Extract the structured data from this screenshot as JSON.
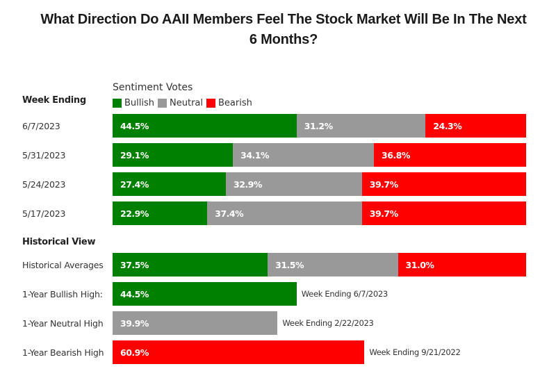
{
  "chart_data": {
    "type": "bar",
    "orientation": "horizontal",
    "stacked": true,
    "title": "What Direction Do AAII Members Feel The Stock Market Will Be In The Next 6 Months?",
    "title_lines": [
      "What Direction Do AAII Members Feel The Stock Market Will Be In The Next",
      "6 Months?"
    ],
    "legend_title": "Sentiment Votes",
    "legend": [
      {
        "name": "Bullish",
        "color": "#008000"
      },
      {
        "name": "Neutral",
        "color": "#999999"
      },
      {
        "name": "Bearish",
        "color": "#ff0000"
      }
    ],
    "xlim": [
      0,
      100
    ],
    "sections": [
      {
        "heading": "Week Ending",
        "rows": [
          {
            "label": "6/7/2023",
            "values": [
              44.5,
              31.2,
              24.3
            ],
            "labels": [
              "44.5%",
              "31.2%",
              "24.3%"
            ]
          },
          {
            "label": "5/31/2023",
            "values": [
              29.1,
              34.1,
              36.8
            ],
            "labels": [
              "29.1%",
              "34.1%",
              "36.8%"
            ]
          },
          {
            "label": "5/24/2023",
            "values": [
              27.4,
              32.9,
              39.7
            ],
            "labels": [
              "27.4%",
              "32.9%",
              "39.7%"
            ]
          },
          {
            "label": "5/17/2023",
            "values": [
              22.9,
              37.4,
              39.7
            ],
            "labels": [
              "22.9%",
              "37.4%",
              "39.7%"
            ]
          }
        ]
      },
      {
        "heading": "Historical View",
        "rows": [
          {
            "label": "Historical Averages",
            "values": [
              37.5,
              31.5,
              31.0
            ],
            "labels": [
              "37.5%",
              "31.5%",
              "31.0%"
            ]
          },
          {
            "label": "1-Year Bullish High:",
            "single": {
              "series": 0,
              "value": 44.5,
              "text": "44.5%"
            },
            "note": "Week Ending 6/7/2023"
          },
          {
            "label": "1-Year Neutral High",
            "single": {
              "series": 1,
              "value": 39.9,
              "text": "39.9%"
            },
            "note": "Week Ending 2/22/2023"
          },
          {
            "label": "1-Year Bearish High",
            "single": {
              "series": 2,
              "value": 60.9,
              "text": "60.9%"
            },
            "note": "Week Ending 9/21/2022"
          }
        ]
      }
    ]
  }
}
